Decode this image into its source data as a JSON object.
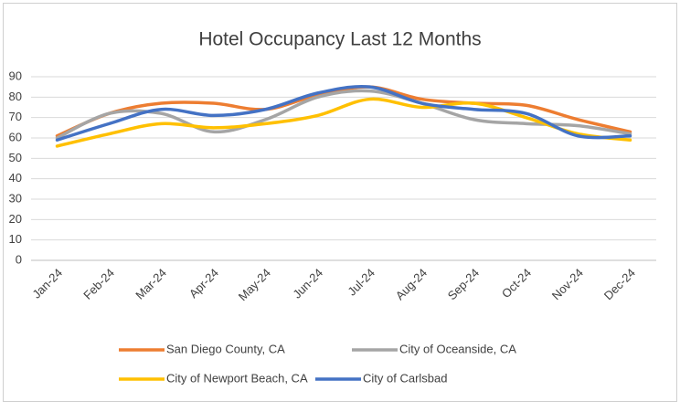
{
  "chart_data": {
    "type": "line",
    "title": "Hotel Occupancy Last 12 Months",
    "categories": [
      "Jan-24",
      "Feb-24",
      "Mar-24",
      "Apr-24",
      "May-24",
      "Jun-24",
      "Jul-24",
      "Aug-24",
      "Sep-24",
      "Oct-24",
      "Nov-24",
      "Dec-24"
    ],
    "series": [
      {
        "name": "San Diego County, CA",
        "color": "#ed7d31",
        "values": [
          61,
          72,
          77,
          77,
          74,
          81,
          85,
          79,
          77,
          76,
          69,
          63
        ]
      },
      {
        "name": "City of Oceanside, CA",
        "color": "#a5a5a5",
        "values": [
          60,
          72,
          72,
          63,
          69,
          80,
          83,
          77,
          69,
          67,
          66,
          62
        ]
      },
      {
        "name": "City of Newport Beach, CA",
        "color": "#ffc000",
        "values": [
          56,
          62,
          67,
          65,
          67,
          71,
          79,
          75,
          77,
          70,
          62,
          59
        ]
      },
      {
        "name": "City of Carlsbad",
        "color": "#4472c4",
        "values": [
          59,
          67,
          74,
          71,
          74,
          82,
          85,
          77,
          74,
          72,
          61,
          61
        ]
      }
    ],
    "ylim": [
      0,
      90
    ],
    "yticks": [
      0,
      10,
      20,
      30,
      40,
      50,
      60,
      70,
      80,
      90
    ],
    "grid": true,
    "legend": "bottom",
    "smooth": true
  }
}
